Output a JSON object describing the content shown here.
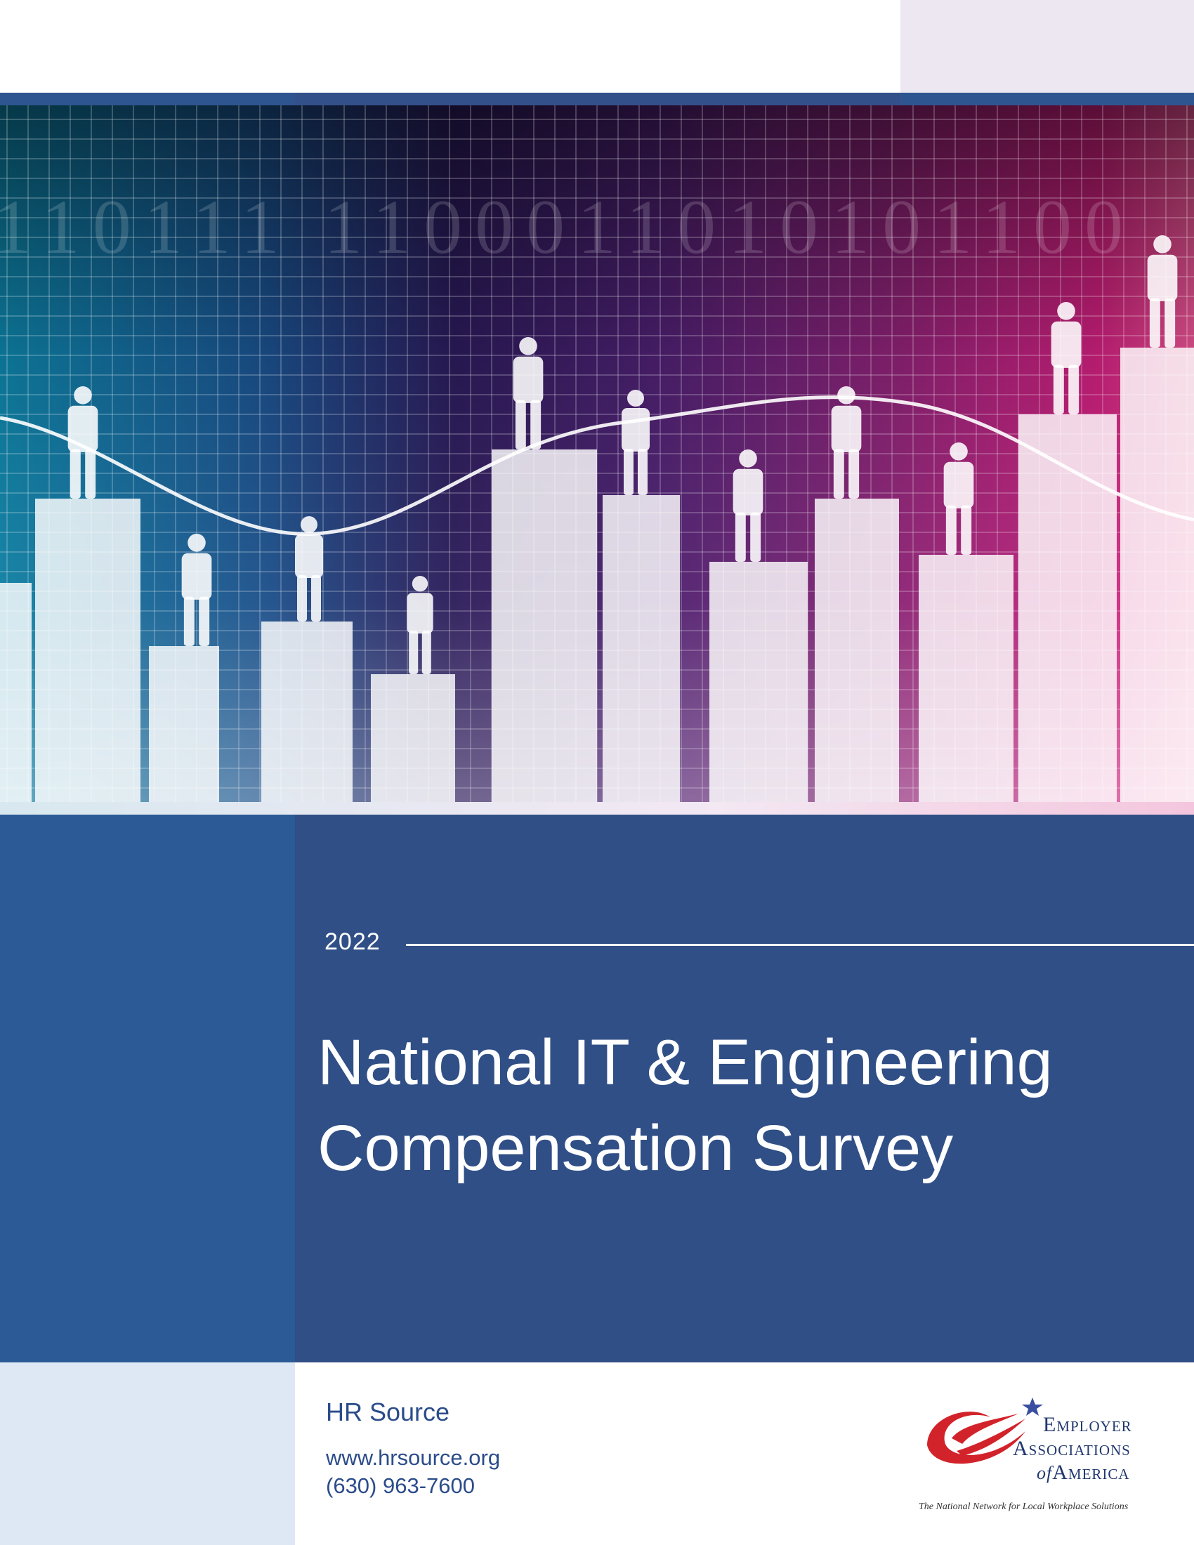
{
  "cover": {
    "year": "2022",
    "title_line1": "National IT & Engineering",
    "title_line2": "Compensation Survey"
  },
  "footer": {
    "organization": "HR Source",
    "website": "www.hrsource.org",
    "phone": "(630) 963-7600"
  },
  "logo": {
    "line1": "Employer",
    "line2": "Associations",
    "line3_small": "of",
    "line3": "America",
    "tagline": "The National Network for Local Workplace Solutions",
    "icon": "swoosh-star-icon"
  },
  "hero": {
    "binary_text": "110111 1100011010101100",
    "icon": "people-on-bar-chart-image"
  },
  "colors": {
    "panel": "#304f86",
    "panel_left": "#2b5a96",
    "text_blue": "#2b4c8a",
    "logo_red": "#d2232a"
  }
}
